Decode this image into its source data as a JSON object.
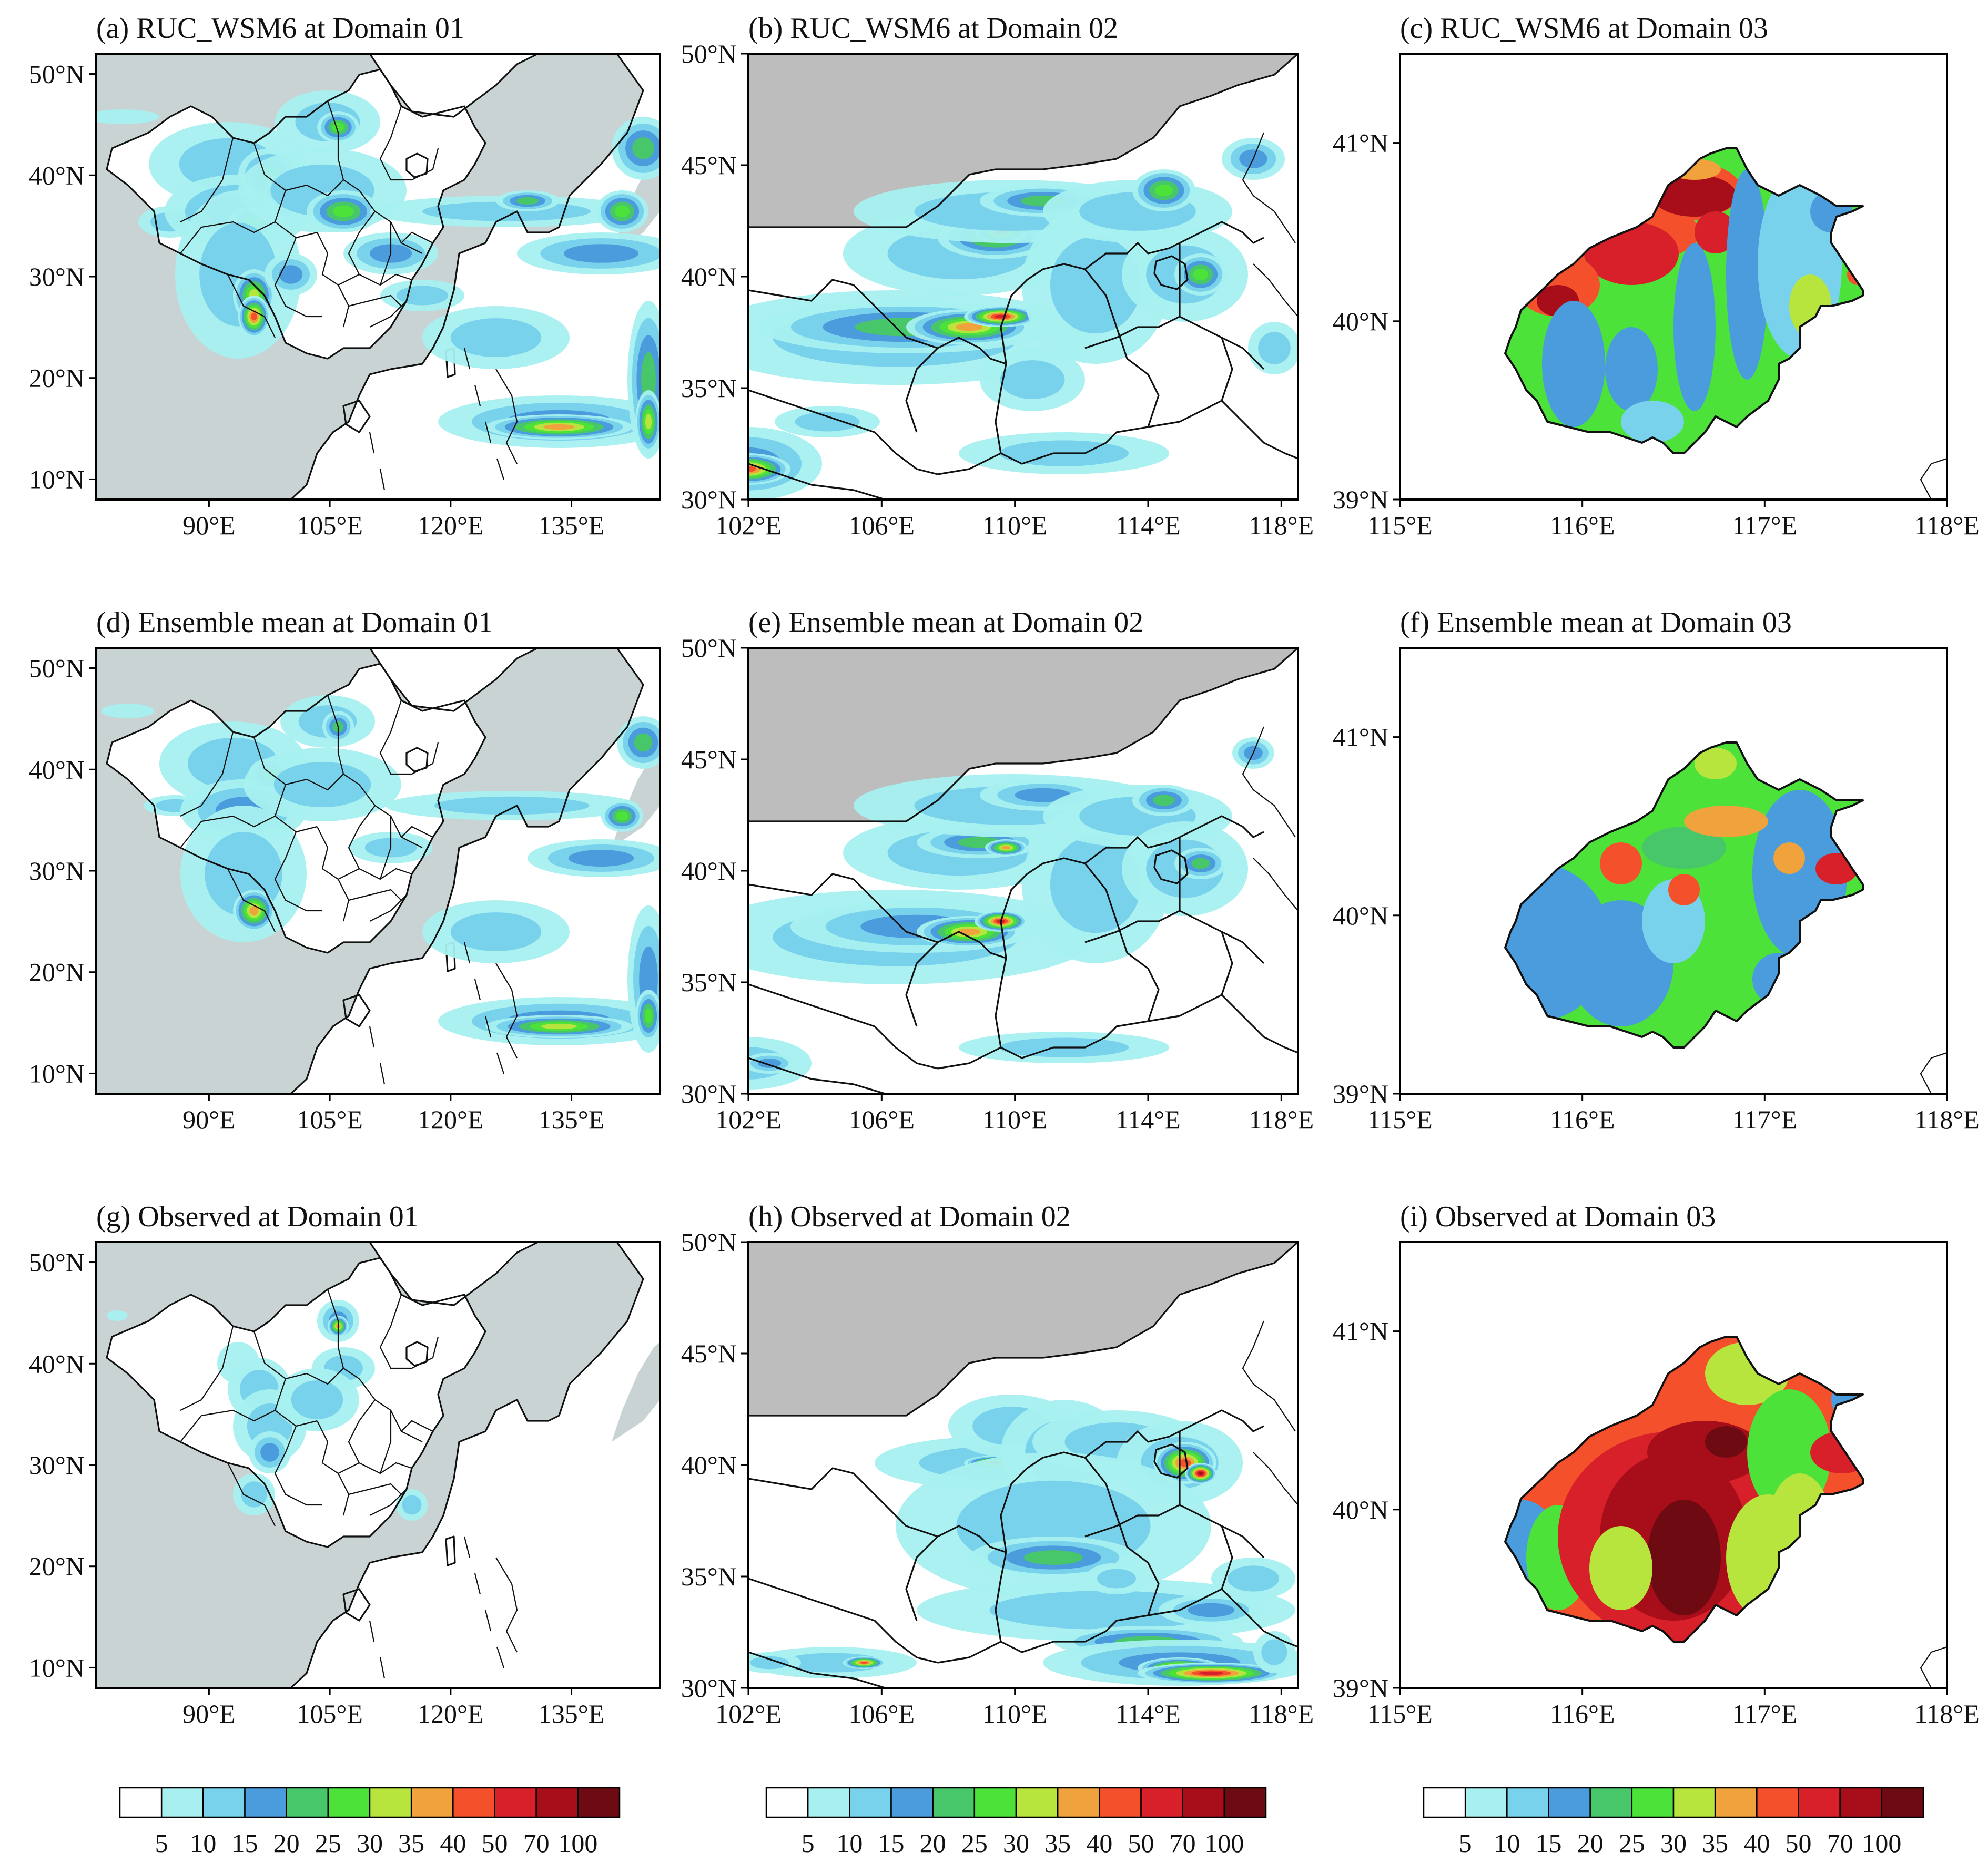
{
  "panels": [
    {
      "id": "a",
      "title": "(a) RUC_WSM6 at Domain 01",
      "domain": 1,
      "scheme": "ruc"
    },
    {
      "id": "b",
      "title": "(b) RUC_WSM6 at Domain 02",
      "domain": 2,
      "scheme": "ruc"
    },
    {
      "id": "c",
      "title": "(c) RUC_WSM6 at Domain 03",
      "domain": 3,
      "scheme": "ruc"
    },
    {
      "id": "d",
      "title": "(d) Ensemble mean at Domain 01",
      "domain": 1,
      "scheme": "ens"
    },
    {
      "id": "e",
      "title": "(e) Ensemble mean at Domain 02",
      "domain": 2,
      "scheme": "ens"
    },
    {
      "id": "f",
      "title": "(f) Ensemble mean at Domain 03",
      "domain": 3,
      "scheme": "ens"
    },
    {
      "id": "g",
      "title": "(g) Observed at Domain 01",
      "domain": 1,
      "scheme": "obs"
    },
    {
      "id": "h",
      "title": "(h) Observed at Domain 02",
      "domain": 2,
      "scheme": "obs"
    },
    {
      "id": "i",
      "title": "(i) Observed at Domain 03",
      "domain": 3,
      "scheme": "obs"
    }
  ],
  "domains": {
    "1": {
      "lon_range": [
        76,
        146
      ],
      "lat_range": [
        8,
        52
      ],
      "lat_ticks": [
        {
          "value": 10,
          "label": "10°N"
        },
        {
          "value": 20,
          "label": "20°N"
        },
        {
          "value": 30,
          "label": "30°N"
        },
        {
          "value": 40,
          "label": "40°N"
        },
        {
          "value": 50,
          "label": "50°N"
        }
      ],
      "lon_ticks": [
        {
          "value": 90,
          "label": "90°E"
        },
        {
          "value": 105,
          "label": "105°E"
        },
        {
          "value": 120,
          "label": "120°E"
        },
        {
          "value": 135,
          "label": "135°E"
        }
      ]
    },
    "2": {
      "lon_range": [
        102,
        118.5
      ],
      "lat_range": [
        30,
        50
      ],
      "lat_ticks": [
        {
          "value": 30,
          "label": "30°N"
        },
        {
          "value": 35,
          "label": "35°N"
        },
        {
          "value": 40,
          "label": "40°N"
        },
        {
          "value": 45,
          "label": "45°N"
        },
        {
          "value": 50,
          "label": "50°N"
        }
      ],
      "lon_ticks": [
        {
          "value": 102,
          "label": "102°E"
        },
        {
          "value": 106,
          "label": "106°E"
        },
        {
          "value": 110,
          "label": "110°E"
        },
        {
          "value": 114,
          "label": "114°E"
        },
        {
          "value": 118,
          "label": "118°E"
        }
      ]
    },
    "3": {
      "lon_range": [
        115,
        118
      ],
      "lat_range": [
        39,
        41.5
      ],
      "lat_ticks": [
        {
          "value": 39,
          "label": "39°N"
        },
        {
          "value": 40,
          "label": "40°N"
        },
        {
          "value": 41,
          "label": "41°N"
        }
      ],
      "lon_ticks": [
        {
          "value": 115,
          "label": "115°E"
        },
        {
          "value": 116,
          "label": "116°E"
        },
        {
          "value": 117,
          "label": "117°E"
        },
        {
          "value": 118,
          "label": "118°E"
        }
      ]
    }
  },
  "colorbar": {
    "levels": [
      "5",
      "10",
      "15",
      "20",
      "25",
      "30",
      "35",
      "40",
      "50",
      "70",
      "100"
    ],
    "colors": [
      "#ffffff",
      "#a8f0f0",
      "#78d2ec",
      "#4a9cdc",
      "#48c66a",
      "#4ce23a",
      "#b8e43e",
      "#f0a33c",
      "#f5502c",
      "#d8202a",
      "#a80d1a",
      "#6e0a12"
    ]
  },
  "colors": {
    "land_domain01": "#c9d3d4",
    "land_domain02": "#bdbdbd"
  }
}
